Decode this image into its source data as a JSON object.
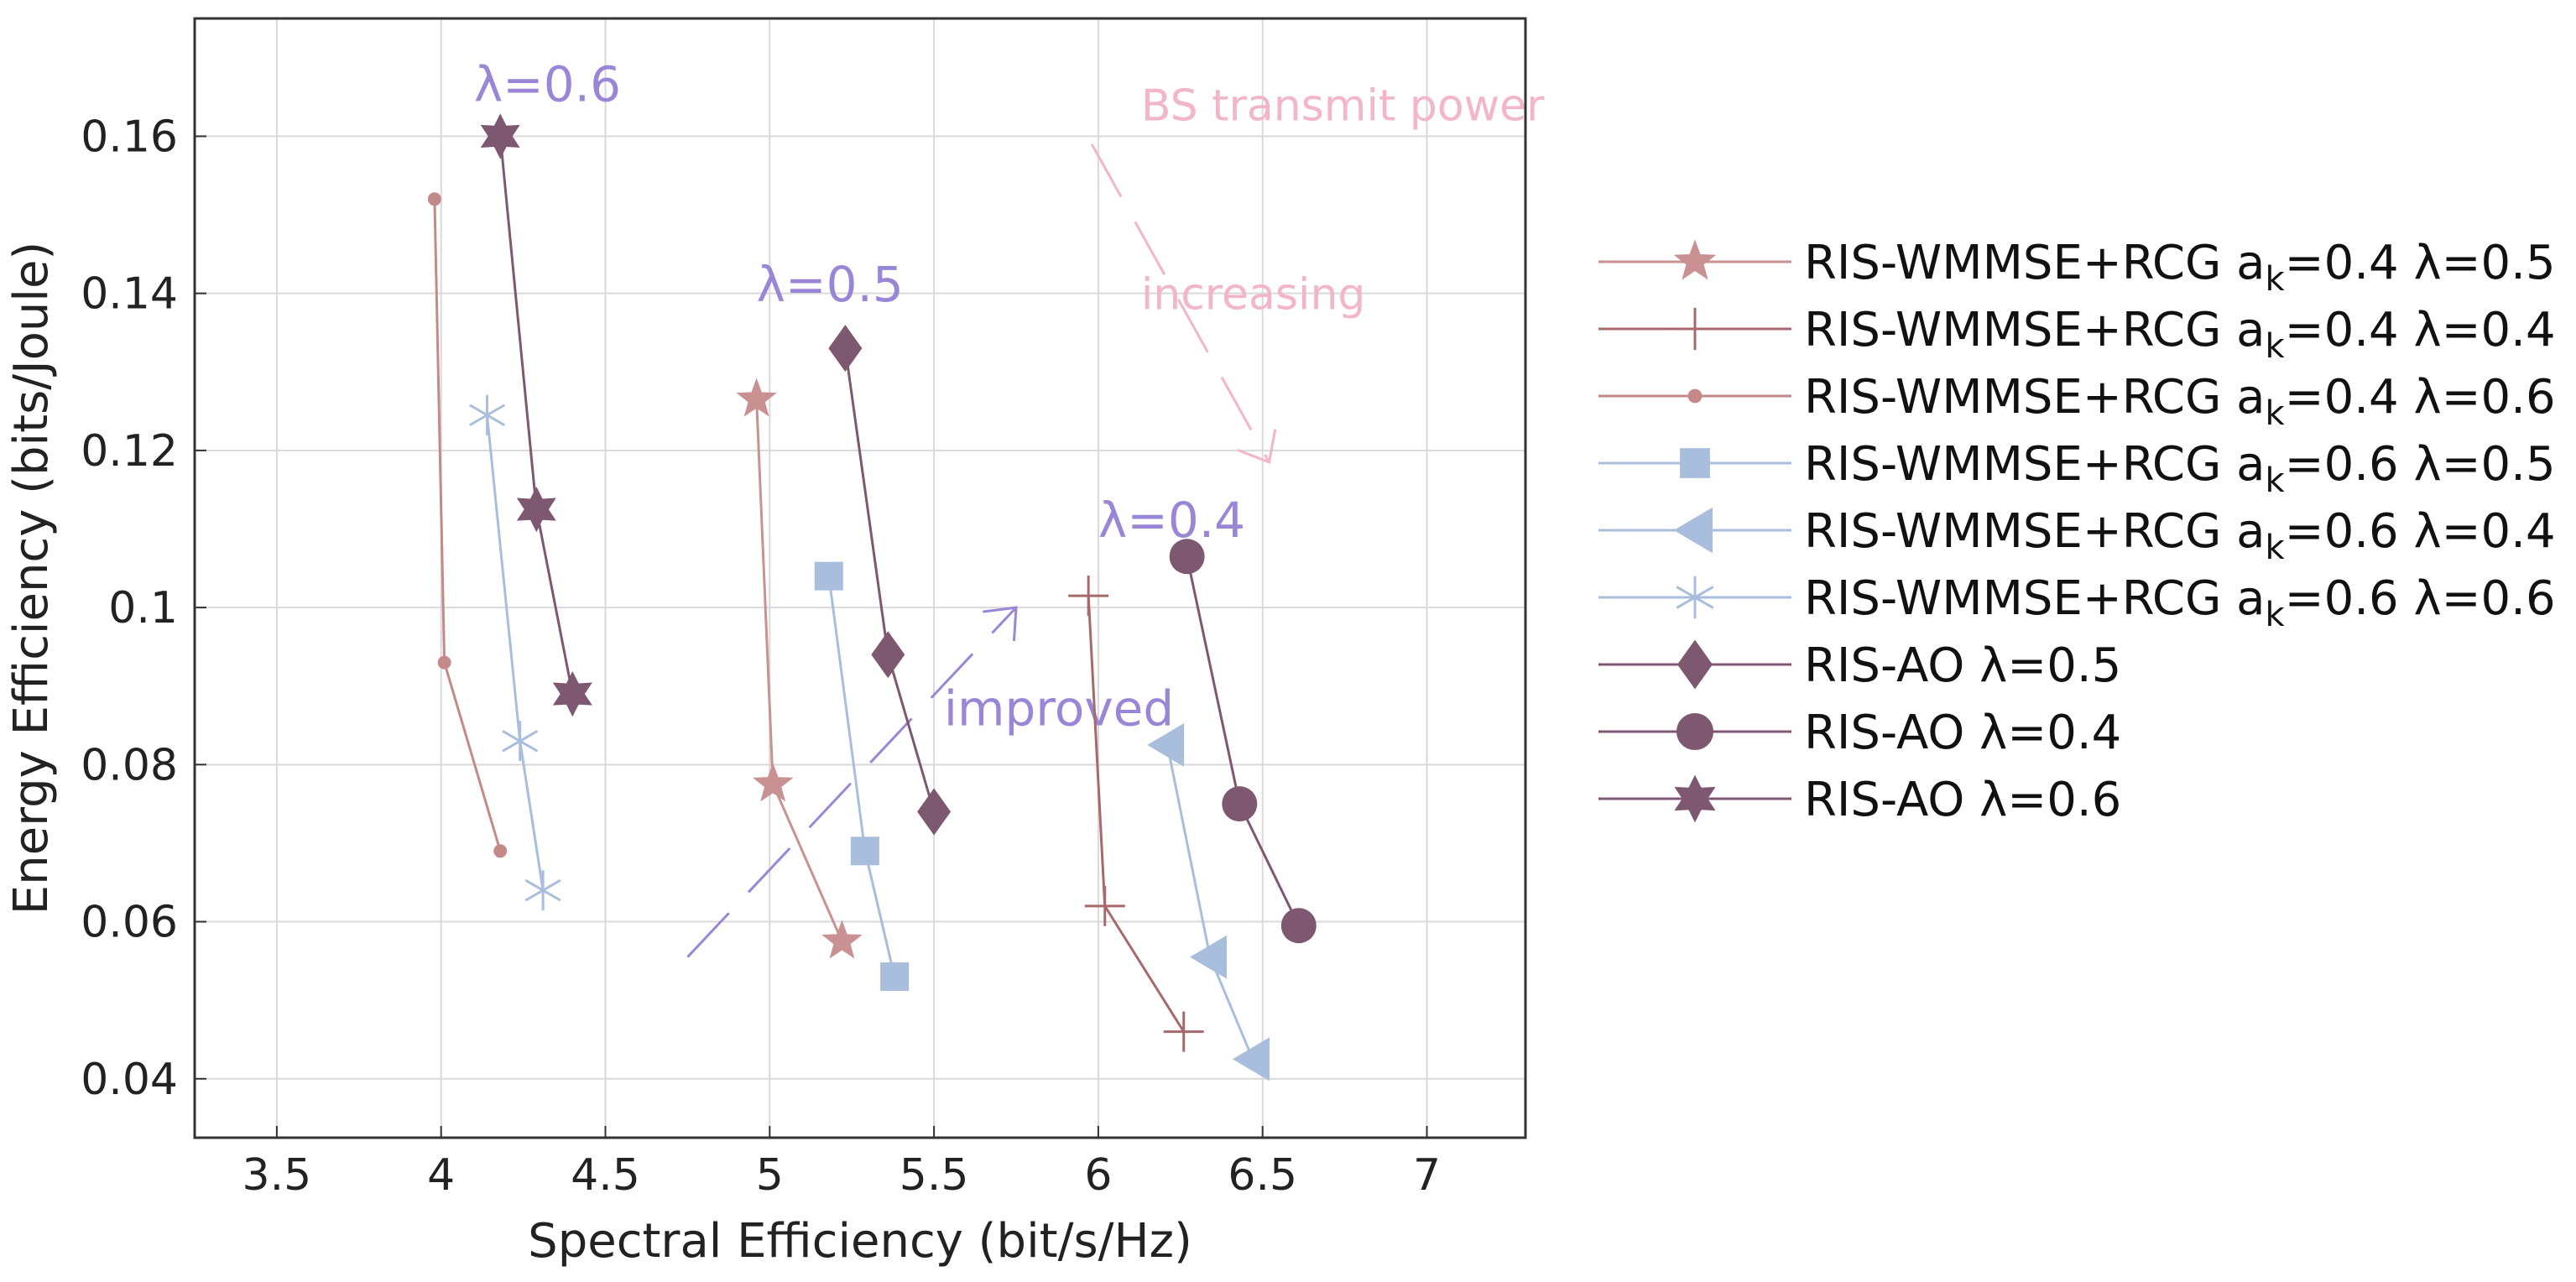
{
  "chart_data": {
    "type": "line",
    "title": "",
    "xlabel": "Spectral Efficiency  (bit/s/Hz)",
    "ylabel": "Energy Efficiency  (bits/Joule)",
    "xlim": [
      3.25,
      7.3
    ],
    "ylim": [
      0.0325,
      0.175
    ],
    "xticks": [
      3.5,
      4,
      4.5,
      5,
      5.5,
      6,
      6.5,
      7
    ],
    "xtick_labels": [
      "3.5",
      "4",
      "4.5",
      "5",
      "5.5",
      "6",
      "6.5",
      "7"
    ],
    "yticks": [
      0.04,
      0.06,
      0.08,
      0.1,
      0.12,
      0.14,
      0.16
    ],
    "ytick_labels": [
      "0.04",
      "0.06",
      "0.08",
      "0.1",
      "0.12",
      "0.14",
      "0.16"
    ],
    "grid": true,
    "legend_position": "outside-right",
    "series": [
      {
        "name": "RIS-WMMSE+RCG a_k=0.4 λ=0.5",
        "label_main": "RIS-WMMSE+RCG a",
        "label_sub": "k",
        "label_tail": "=0.4 λ=0.5",
        "color": "#c99191",
        "marker": "star5",
        "x": [
          4.96,
          5.01,
          5.22
        ],
        "y": [
          0.1265,
          0.0775,
          0.0575
        ]
      },
      {
        "name": "RIS-WMMSE+RCG a_k=0.4 λ=0.4",
        "label_main": "RIS-WMMSE+RCG a",
        "label_sub": "k",
        "label_tail": "=0.4 λ=0.4",
        "color": "#a8696c",
        "marker": "plus",
        "x": [
          5.97,
          6.02,
          6.26
        ],
        "y": [
          0.1015,
          0.062,
          0.046
        ]
      },
      {
        "name": "RIS-WMMSE+RCG a_k=0.4 λ=0.6",
        "label_main": "RIS-WMMSE+RCG a",
        "label_sub": "k",
        "label_tail": "=0.4 λ=0.6",
        "color": "#c48a8a",
        "marker": "dot",
        "x": [
          3.98,
          4.01,
          4.18
        ],
        "y": [
          0.152,
          0.093,
          0.069
        ]
      },
      {
        "name": "RIS-WMMSE+RCG a_k=0.6 λ=0.5",
        "label_main": "RIS-WMMSE+RCG a",
        "label_sub": "k",
        "label_tail": "=0.6 λ=0.5",
        "color": "#a9bedc",
        "marker": "square",
        "x": [
          5.18,
          5.29,
          5.38
        ],
        "y": [
          0.104,
          0.069,
          0.053
        ]
      },
      {
        "name": "RIS-WMMSE+RCG a_k=0.6 λ=0.4",
        "label_main": "RIS-WMMSE+RCG a",
        "label_sub": "k",
        "label_tail": "=0.6 λ=0.4",
        "color": "#a9bedc",
        "marker": "triangle-left",
        "x": [
          6.21,
          6.34,
          6.47
        ],
        "y": [
          0.0825,
          0.0555,
          0.0425
        ]
      },
      {
        "name": "RIS-WMMSE+RCG a_k=0.6 λ=0.6",
        "label_main": "RIS-WMMSE+RCG a",
        "label_sub": "k",
        "label_tail": "=0.6 λ=0.6",
        "color": "#a9bedc",
        "marker": "asterisk",
        "x": [
          4.14,
          4.24,
          4.31
        ],
        "y": [
          0.1245,
          0.083,
          0.064
        ]
      },
      {
        "name": "RIS-AO λ=0.5",
        "label_main": "RIS-AO λ=0.5",
        "label_sub": "",
        "label_tail": "",
        "color": "#7e5870",
        "marker": "diamond",
        "x": [
          5.23,
          5.36,
          5.5
        ],
        "y": [
          0.133,
          0.094,
          0.074
        ]
      },
      {
        "name": "RIS-AO λ=0.4",
        "label_main": "RIS-AO λ=0.4",
        "label_sub": "",
        "label_tail": "",
        "color": "#7e5870",
        "marker": "circle",
        "x": [
          6.27,
          6.43,
          6.61
        ],
        "y": [
          0.1065,
          0.075,
          0.0595
        ]
      },
      {
        "name": "RIS-AO λ=0.6",
        "label_main": "RIS-AO λ=0.6",
        "label_sub": "",
        "label_tail": "",
        "color": "#7e5870",
        "marker": "star6",
        "x": [
          4.18,
          4.29,
          4.4
        ],
        "y": [
          0.16,
          0.1125,
          0.089
        ]
      }
    ],
    "annotations": [
      {
        "text": "λ=0.6",
        "x": 4.1,
        "y": 0.1645,
        "color": "#9a86d6"
      },
      {
        "text": "λ=0.5",
        "x": 4.96,
        "y": 0.139,
        "color": "#9a86d6"
      },
      {
        "text": "λ=0.4",
        "x": 6.0,
        "y": 0.109,
        "color": "#9a86d6"
      },
      {
        "text": "improved",
        "x": 5.53,
        "y": 0.085,
        "color": "#9a86d6"
      },
      {
        "text": "BS transmit power",
        "x": 6.13,
        "y": 0.162,
        "color": "#f2b6c6"
      },
      {
        "text": "increasing",
        "x": 6.13,
        "y": 0.138,
        "color": "#f2b6c6"
      }
    ],
    "arrows": [
      {
        "name": "improved-arrow",
        "color": "#9a86d6",
        "from": [
          4.75,
          0.0555
        ],
        "to": [
          5.75,
          0.1
        ]
      },
      {
        "name": "power-arrow",
        "color": "#f2b6c6",
        "from": [
          5.98,
          0.159
        ],
        "to": [
          6.52,
          0.1185
        ]
      }
    ]
  }
}
